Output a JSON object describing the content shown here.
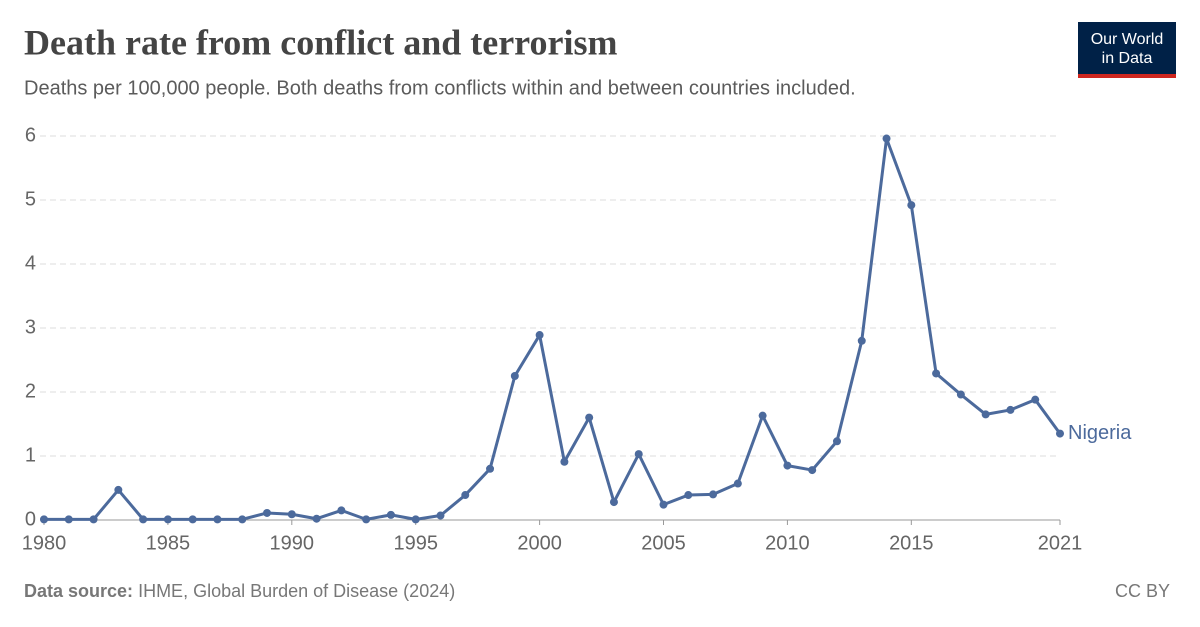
{
  "chart_data": {
    "type": "line",
    "title": "Death rate from conflict and terrorism",
    "subtitle": "Deaths per 100,000 people. Both deaths from conflicts within and between countries included.",
    "logo": [
      "Our World",
      "in Data"
    ],
    "source_label": "Data source:",
    "source": "IHME, Global Burden of Disease (2024)",
    "license": "CC BY",
    "x": [
      1980,
      1981,
      1982,
      1983,
      1984,
      1985,
      1986,
      1987,
      1988,
      1989,
      1990,
      1991,
      1992,
      1993,
      1994,
      1995,
      1996,
      1997,
      1998,
      1999,
      2000,
      2001,
      2002,
      2003,
      2004,
      2005,
      2006,
      2007,
      2008,
      2009,
      2010,
      2011,
      2012,
      2013,
      2014,
      2015,
      2016,
      2017,
      2018,
      2019,
      2020,
      2021
    ],
    "series": [
      {
        "name": "Nigeria",
        "color": "#4c6a9c",
        "values": [
          0.01,
          0.01,
          0.01,
          0.47,
          0.01,
          0.01,
          0.01,
          0.01,
          0.01,
          0.11,
          0.09,
          0.02,
          0.15,
          0.01,
          0.08,
          0.01,
          0.07,
          0.39,
          0.8,
          2.25,
          2.89,
          0.91,
          1.6,
          0.28,
          1.03,
          0.24,
          0.39,
          0.4,
          0.57,
          1.63,
          0.85,
          0.78,
          1.23,
          2.8,
          5.96,
          4.92,
          2.29,
          1.96,
          1.65,
          1.72,
          1.88,
          1.35
        ]
      }
    ],
    "xlim": [
      1980,
      2021
    ],
    "xticks": [
      1980,
      1985,
      1990,
      1995,
      2000,
      2005,
      2010,
      2015,
      2021
    ],
    "ylim": [
      0,
      6
    ],
    "yticks": [
      0,
      1,
      2,
      3,
      4,
      5,
      6
    ],
    "grid": true
  }
}
